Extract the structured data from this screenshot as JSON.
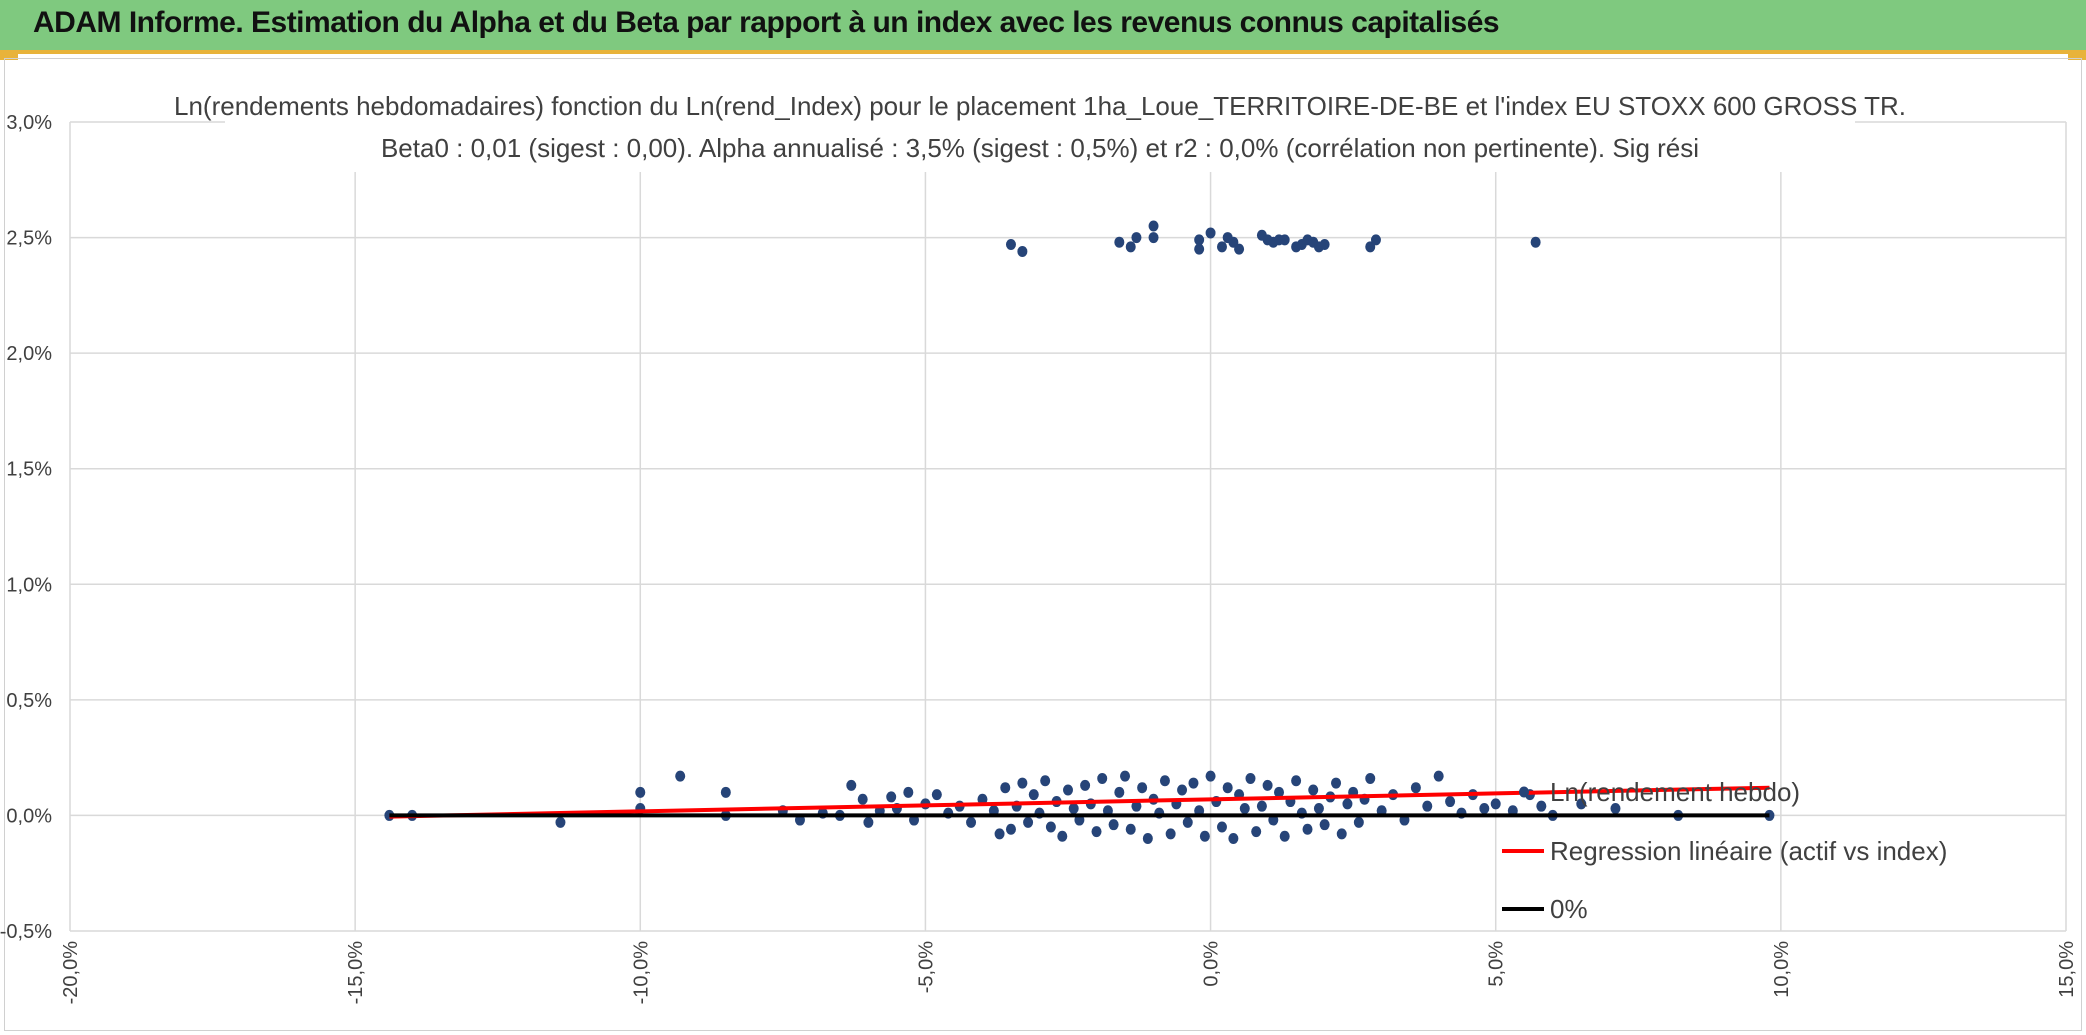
{
  "header": {
    "title": "ADAM Informe. Estimation du Alpha et du Beta par rapport à un index avec les revenus connus capitalisés"
  },
  "colors": {
    "header_bg": "#7fc97f",
    "accent": "#e8b33a",
    "points": "#264478",
    "regression": "#ff0000",
    "zero_line": "#000000",
    "grid": "#d9d9d9"
  },
  "chart_data": {
    "type": "scatter",
    "title_line1": "Ln(rendements hebdomadaires) fonction du Ln(rend_Index) pour le placement 1ha_Loue_TERRITOIRE-DE-BE et l'index EU STOXX 600 GROSS TR.",
    "title_line2": "Beta0 : 0,01 (sigest : 0,00). Alpha annualisé : 3,5% (sigest : 0,5%) et r2 : 0,0% (corrélation non pertinente). Sig rési",
    "xlim": [
      -0.2,
      0.15
    ],
    "ylim": [
      -0.005,
      0.03
    ],
    "x_ticks": [
      -0.2,
      -0.15,
      -0.1,
      -0.05,
      0.0,
      0.05,
      0.1,
      0.15
    ],
    "x_tick_labels": [
      "-20,0%",
      "-15,0%",
      "-10,0%",
      "-5,0%",
      "0,0%",
      "5,0%",
      "10,0%",
      "15,0%"
    ],
    "y_ticks": [
      -0.005,
      0.0,
      0.005,
      0.01,
      0.015,
      0.02,
      0.025,
      0.03
    ],
    "y_tick_labels": [
      "-0,5%",
      "0,0%",
      "0,5%",
      "1,0%",
      "1,5%",
      "2,0%",
      "2,5%",
      "3,0%"
    ],
    "grid": true,
    "legend_position": "right",
    "series": [
      {
        "name": "Ln(rendement hebdo)",
        "kind": "points",
        "color": "#264478",
        "points": [
          [
            -0.144,
            0.0
          ],
          [
            -0.14,
            0.0
          ],
          [
            -0.114,
            -0.0003
          ],
          [
            -0.1,
            0.001
          ],
          [
            -0.1,
            0.0003
          ],
          [
            -0.093,
            0.0017
          ],
          [
            -0.085,
            0.001
          ],
          [
            -0.085,
            0.0
          ],
          [
            -0.075,
            0.0002
          ],
          [
            -0.072,
            -0.0002
          ],
          [
            -0.068,
            0.0001
          ],
          [
            -0.065,
            0.0
          ],
          [
            -0.063,
            0.0013
          ],
          [
            -0.061,
            0.0007
          ],
          [
            -0.06,
            -0.0003
          ],
          [
            -0.058,
            0.0002
          ],
          [
            -0.056,
            0.0008
          ],
          [
            -0.055,
            0.0003
          ],
          [
            -0.053,
            0.001
          ],
          [
            -0.052,
            -0.0002
          ],
          [
            -0.05,
            0.0005
          ],
          [
            -0.048,
            0.0009
          ],
          [
            -0.046,
            0.0001
          ],
          [
            -0.044,
            0.0004
          ],
          [
            -0.042,
            -0.0003
          ],
          [
            -0.04,
            0.0007
          ],
          [
            -0.038,
            0.0002
          ],
          [
            -0.037,
            -0.0008
          ],
          [
            -0.036,
            0.0012
          ],
          [
            -0.035,
            -0.0006
          ],
          [
            -0.034,
            0.0004
          ],
          [
            -0.033,
            0.0014
          ],
          [
            -0.032,
            -0.0003
          ],
          [
            -0.031,
            0.0009
          ],
          [
            -0.03,
            0.0001
          ],
          [
            -0.029,
            0.0015
          ],
          [
            -0.028,
            -0.0005
          ],
          [
            -0.027,
            0.0006
          ],
          [
            -0.026,
            -0.0009
          ],
          [
            -0.025,
            0.0011
          ],
          [
            -0.024,
            0.0003
          ],
          [
            -0.023,
            -0.0002
          ],
          [
            -0.022,
            0.0013
          ],
          [
            -0.021,
            0.0005
          ],
          [
            -0.02,
            -0.0007
          ],
          [
            -0.019,
            0.0016
          ],
          [
            -0.018,
            0.0002
          ],
          [
            -0.017,
            -0.0004
          ],
          [
            -0.016,
            0.001
          ],
          [
            -0.015,
            0.0017
          ],
          [
            -0.014,
            -0.0006
          ],
          [
            -0.013,
            0.0004
          ],
          [
            -0.012,
            0.0012
          ],
          [
            -0.011,
            -0.001
          ],
          [
            -0.01,
            0.0007
          ],
          [
            -0.009,
            0.0001
          ],
          [
            -0.008,
            0.0015
          ],
          [
            -0.007,
            -0.0008
          ],
          [
            -0.006,
            0.0005
          ],
          [
            -0.005,
            0.0011
          ],
          [
            -0.004,
            -0.0003
          ],
          [
            -0.003,
            0.0014
          ],
          [
            -0.002,
            0.0002
          ],
          [
            -0.001,
            -0.0009
          ],
          [
            0.0,
            0.0017
          ],
          [
            0.001,
            0.0006
          ],
          [
            0.002,
            -0.0005
          ],
          [
            0.003,
            0.0012
          ],
          [
            0.004,
            -0.001
          ],
          [
            0.005,
            0.0009
          ],
          [
            0.006,
            0.0003
          ],
          [
            0.007,
            0.0016
          ],
          [
            0.008,
            -0.0007
          ],
          [
            0.009,
            0.0004
          ],
          [
            0.01,
            0.0013
          ],
          [
            0.011,
            -0.0002
          ],
          [
            0.012,
            0.001
          ],
          [
            0.013,
            -0.0009
          ],
          [
            0.014,
            0.0006
          ],
          [
            0.015,
            0.0015
          ],
          [
            0.016,
            0.0001
          ],
          [
            0.017,
            -0.0006
          ],
          [
            0.018,
            0.0011
          ],
          [
            0.019,
            0.0003
          ],
          [
            0.02,
            -0.0004
          ],
          [
            0.021,
            0.0008
          ],
          [
            0.022,
            0.0014
          ],
          [
            0.023,
            -0.0008
          ],
          [
            0.024,
            0.0005
          ],
          [
            0.025,
            0.001
          ],
          [
            0.026,
            -0.0003
          ],
          [
            0.027,
            0.0007
          ],
          [
            0.028,
            0.0016
          ],
          [
            0.03,
            0.0002
          ],
          [
            0.032,
            0.0009
          ],
          [
            0.034,
            -0.0002
          ],
          [
            0.036,
            0.0012
          ],
          [
            0.038,
            0.0004
          ],
          [
            0.04,
            0.0017
          ],
          [
            0.042,
            0.0006
          ],
          [
            0.044,
            0.0001
          ],
          [
            0.046,
            0.0009
          ],
          [
            0.048,
            0.0003
          ],
          [
            0.05,
            0.0005
          ],
          [
            0.053,
            0.0002
          ],
          [
            0.056,
            0.0009
          ],
          [
            0.058,
            0.0004
          ],
          [
            0.06,
            0.0
          ],
          [
            0.065,
            0.0005
          ],
          [
            0.071,
            0.0003
          ],
          [
            0.082,
            0.0
          ],
          [
            0.098,
            0.0
          ],
          [
            -0.035,
            0.0247
          ],
          [
            -0.033,
            0.0244
          ],
          [
            -0.016,
            0.0248
          ],
          [
            -0.014,
            0.0246
          ],
          [
            -0.013,
            0.025
          ],
          [
            -0.01,
            0.0255
          ],
          [
            -0.01,
            0.025
          ],
          [
            -0.002,
            0.0245
          ],
          [
            -0.002,
            0.0249
          ],
          [
            0.0,
            0.0252
          ],
          [
            0.002,
            0.0246
          ],
          [
            0.003,
            0.025
          ],
          [
            0.004,
            0.0248
          ],
          [
            0.005,
            0.0245
          ],
          [
            0.009,
            0.0251
          ],
          [
            0.01,
            0.0249
          ],
          [
            0.011,
            0.0248
          ],
          [
            0.012,
            0.0249
          ],
          [
            0.013,
            0.0249
          ],
          [
            0.015,
            0.0246
          ],
          [
            0.016,
            0.0247
          ],
          [
            0.017,
            0.0249
          ],
          [
            0.018,
            0.0248
          ],
          [
            0.019,
            0.0246
          ],
          [
            0.02,
            0.0247
          ],
          [
            0.028,
            0.0246
          ],
          [
            0.029,
            0.0249
          ],
          [
            0.057,
            0.0248
          ]
        ]
      },
      {
        "name": "Regression linéaire (actif vs index)",
        "kind": "line",
        "color": "#ff0000",
        "x": [
          -0.144,
          0.098
        ],
        "y": [
          -5e-05,
          0.0012
        ]
      },
      {
        "name": "0%",
        "kind": "line",
        "color": "#000000",
        "x": [
          -0.144,
          0.098
        ],
        "y": [
          0.0,
          0.0
        ]
      }
    ]
  }
}
